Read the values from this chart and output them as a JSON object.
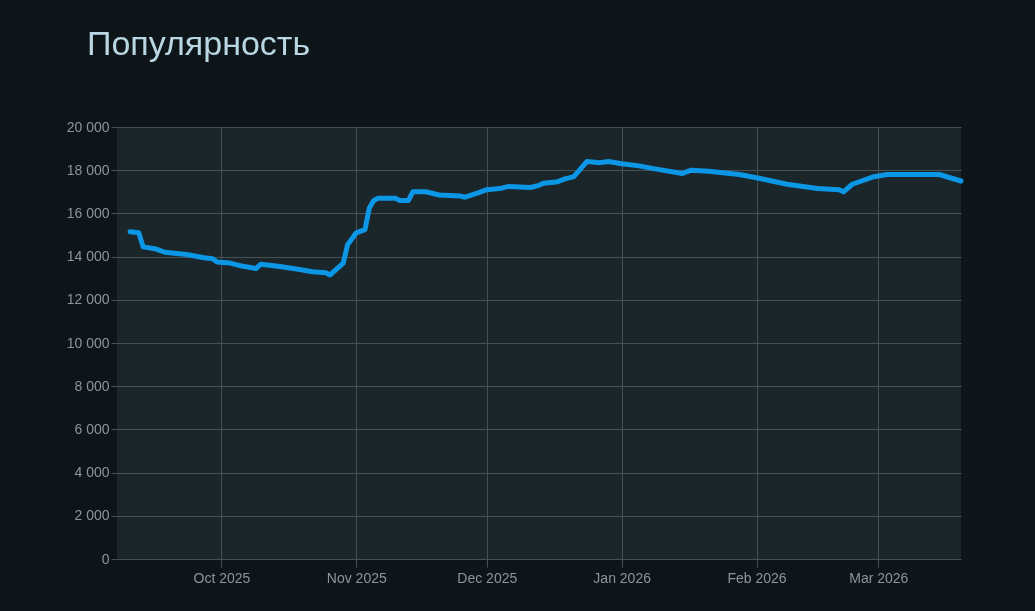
{
  "chart_data": {
    "type": "line",
    "title": "Популярность",
    "x": [
      "2025-09-10",
      "2025-09-12",
      "2025-09-13",
      "2025-09-16",
      "2025-09-18",
      "2025-09-23",
      "2025-09-27",
      "2025-09-29",
      "2025-09-30",
      "2025-10-03",
      "2025-10-06",
      "2025-10-09",
      "2025-10-10",
      "2025-10-14",
      "2025-10-19",
      "2025-10-22",
      "2025-10-25",
      "2025-10-26",
      "2025-10-29",
      "2025-10-30",
      "2025-11-01",
      "2025-11-03",
      "2025-11-04",
      "2025-11-05",
      "2025-11-06",
      "2025-11-10",
      "2025-11-11",
      "2025-11-13",
      "2025-11-14",
      "2025-11-17",
      "2025-11-20",
      "2025-11-25",
      "2025-11-26",
      "2025-11-29",
      "2025-12-01",
      "2025-12-04",
      "2025-12-06",
      "2025-12-11",
      "2025-12-13",
      "2025-12-14",
      "2025-12-17",
      "2025-12-19",
      "2025-12-21",
      "2025-12-24",
      "2025-12-27",
      "2025-12-29",
      "2026-01-01",
      "2026-01-05",
      "2026-01-09",
      "2026-01-15",
      "2026-01-17",
      "2026-01-21",
      "2026-01-28",
      "2026-02-01",
      "2026-02-08",
      "2026-02-15",
      "2026-02-20",
      "2026-02-21",
      "2026-02-23",
      "2026-02-28",
      "2026-03-03",
      "2026-03-12",
      "2026-03-15",
      "2026-03-20"
    ],
    "series": [
      {
        "color": "#0b96e6",
        "values": [
          15150,
          15100,
          14450,
          14350,
          14200,
          14100,
          13950,
          13900,
          13750,
          13700,
          13550,
          13450,
          13650,
          13550,
          13400,
          13300,
          13250,
          13150,
          13700,
          14550,
          15100,
          15250,
          16250,
          16600,
          16700,
          16700,
          16600,
          16600,
          17000,
          17000,
          16850,
          16800,
          16750,
          16950,
          17100,
          17150,
          17250,
          17200,
          17300,
          17400,
          17450,
          17600,
          17700,
          18400,
          18350,
          18400,
          18300,
          18200,
          18050,
          17850,
          18000,
          17950,
          17800,
          17650,
          17350,
          17150,
          17100,
          17000,
          17350,
          17700,
          17800,
          17800,
          17800,
          17500
        ]
      }
    ],
    "xlim": [
      "2025-09-07",
      "2026-03-20"
    ],
    "xticks": [
      {
        "value": "2025-10-01",
        "label": "Oct 2025"
      },
      {
        "value": "2025-11-01",
        "label": "Nov 2025"
      },
      {
        "value": "2025-12-01",
        "label": "Dec 2025"
      },
      {
        "value": "2026-01-01",
        "label": "Jan 2026"
      },
      {
        "value": "2026-02-01",
        "label": "Feb 2026"
      },
      {
        "value": "2026-03-01",
        "label": "Mar 2026"
      }
    ],
    "ylim": [
      0,
      20000
    ],
    "yticks": [
      0,
      {
        "value": 2000,
        "label": "2 000"
      },
      {
        "value": 4000,
        "label": "4 000"
      },
      {
        "value": 6000,
        "label": "6 000"
      },
      {
        "value": 8000,
        "label": "8 000"
      },
      {
        "value": 10000,
        "label": "10 000"
      },
      {
        "value": 12000,
        "label": "12 000"
      },
      {
        "value": 14000,
        "label": "14 000"
      },
      {
        "value": 16000,
        "label": "16 000"
      },
      {
        "value": 18000,
        "label": "18 000"
      },
      {
        "value": 20000,
        "label": "20 000"
      }
    ],
    "grid": true,
    "marker": "none",
    "line_style": "solid"
  }
}
